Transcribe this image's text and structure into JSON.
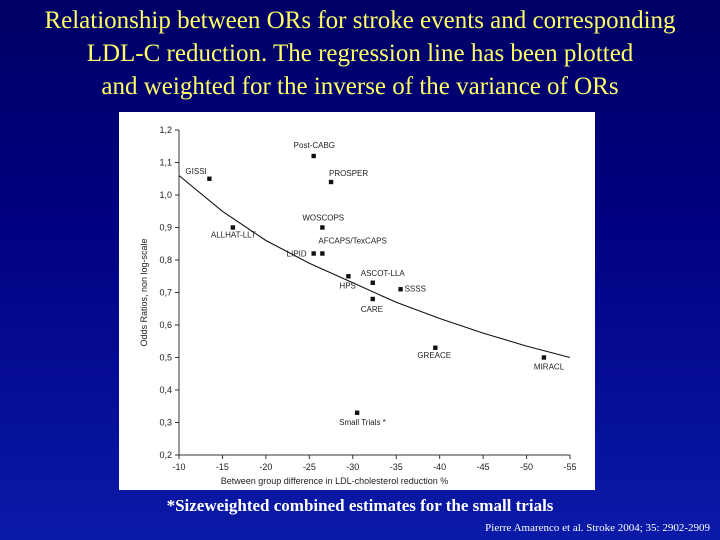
{
  "slide": {
    "title_lines": [
      "Relationship between ORs for stroke events and corresponding",
      "LDL-C reduction. The regression line has been plotted",
      "and weighted for the inverse of the variance of ORs"
    ],
    "footnote": "*Sizeweighted combined estimates for the small trials",
    "citation": "Pierre Amarenco et al. Stroke 2004; 35: 2902-2909"
  },
  "chart_data": {
    "type": "scatter",
    "xlabel": "Between group difference in LDL-cholesterol reduction %",
    "ylabel": "Odds Ratios, non log-scale",
    "xlim": [
      -10,
      -55
    ],
    "ylim": [
      0.2,
      1.2
    ],
    "x_ticks": [
      "-10",
      "-15",
      "-20",
      "-25",
      "-30",
      "-35",
      "-40",
      "-45",
      "-50",
      "-55"
    ],
    "y_ticks": [
      "0,2",
      "0,3",
      "0,4",
      "0,5",
      "0,6",
      "0,7",
      "0,8",
      "0,9",
      "1,0",
      "1,1",
      "1,2"
    ],
    "points": [
      {
        "label": "Post-CABG",
        "x": -25.5,
        "y": 1.12
      },
      {
        "label": "GISSI",
        "x": -13.5,
        "y": 1.05
      },
      {
        "label": "PROSPER",
        "x": -27.5,
        "y": 1.04
      },
      {
        "label": "ALLHAT-LLT",
        "x": -16.2,
        "y": 0.9
      },
      {
        "label": "WOSCOPS",
        "x": -26.5,
        "y": 0.9
      },
      {
        "label": "AFCAPS/TexCAPS",
        "x": -26.5,
        "y": 0.82
      },
      {
        "label": "LIPID",
        "x": -25.5,
        "y": 0.82
      },
      {
        "label": "HPS",
        "x": -29.5,
        "y": 0.75
      },
      {
        "label": "ASCOT-LLA",
        "x": -32.3,
        "y": 0.73
      },
      {
        "label": "SSSS",
        "x": -35.5,
        "y": 0.71
      },
      {
        "label": "CARE",
        "x": -32.3,
        "y": 0.68
      },
      {
        "label": "GREACE",
        "x": -39.5,
        "y": 0.53
      },
      {
        "label": "MIRACL",
        "x": -52,
        "y": 0.5
      },
      {
        "label": "Small Trials *",
        "x": -30.5,
        "y": 0.33
      }
    ],
    "regression_line": [
      {
        "x": -10,
        "y": 1.06
      },
      {
        "x": -15,
        "y": 0.95
      },
      {
        "x": -20,
        "y": 0.86
      },
      {
        "x": -25,
        "y": 0.79
      },
      {
        "x": -30,
        "y": 0.73
      },
      {
        "x": -35,
        "y": 0.67
      },
      {
        "x": -40,
        "y": 0.62
      },
      {
        "x": -45,
        "y": 0.575
      },
      {
        "x": -50,
        "y": 0.535
      },
      {
        "x": -55,
        "y": 0.5
      }
    ],
    "colors": {
      "points": "#111111",
      "line": "#111111",
      "background": "#ffffff"
    }
  }
}
